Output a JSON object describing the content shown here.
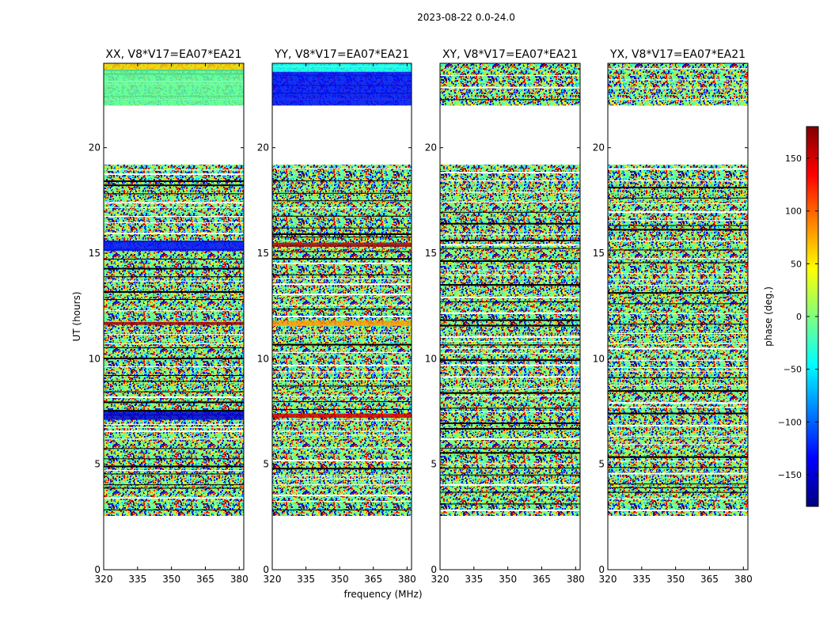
{
  "figure": {
    "title": "2023-08-22 0.0-24.0",
    "xlabel": "frequency (MHz)",
    "ylabel": "UT (hours)"
  },
  "colorbar": {
    "label": "phase (deg.)",
    "range": [
      -180,
      180
    ],
    "ticks": [
      -150,
      -100,
      -50,
      0,
      50,
      100,
      150
    ],
    "tick_labels": [
      "−150",
      "−100",
      "−50",
      "0",
      "50",
      "100",
      "150"
    ],
    "colormap": "jet",
    "colors": [
      "#00007f",
      "#0000ff",
      "#007fff",
      "#00ffff",
      "#7fff7f",
      "#ffff00",
      "#ff7f00",
      "#ff0000",
      "#7f0000"
    ]
  },
  "chart_data": [
    {
      "type": "heatmap",
      "title": "XX, V8*V17=EA07*EA21",
      "x_range": [
        320,
        382
      ],
      "y_range": [
        0,
        24
      ],
      "x_ticks": [
        320,
        335,
        350,
        365,
        380
      ],
      "y_ticks": [
        0,
        5,
        10,
        15,
        20
      ],
      "data_time_ranges_hours": [
        [
          2.55,
          19.2
        ],
        [
          22.0,
          24.0
        ]
      ],
      "colored_bands": [
        {
          "t0": 11.6,
          "t1": 11.75,
          "phase": 170
        },
        {
          "t0": 7.1,
          "t1": 7.5,
          "phase": -150
        },
        {
          "t0": 15.1,
          "t1": 15.6,
          "phase": -130
        },
        {
          "t0": 23.7,
          "t1": 24.0,
          "phase": 60
        },
        {
          "t0": 22.0,
          "t1": 23.7,
          "phase": -10
        }
      ]
    },
    {
      "type": "heatmap",
      "title": "YY, V8*V17=EA07*EA21",
      "x_range": [
        320,
        382
      ],
      "y_range": [
        0,
        24
      ],
      "x_ticks": [
        320,
        335,
        350,
        365,
        380
      ],
      "y_ticks": [
        0,
        5,
        10,
        15,
        20
      ],
      "data_time_ranges_hours": [
        [
          2.55,
          19.2
        ],
        [
          22.0,
          24.0
        ]
      ],
      "colored_bands": [
        {
          "t0": 7.2,
          "t1": 7.4,
          "phase": 150
        },
        {
          "t0": 11.55,
          "t1": 11.8,
          "phase": 80
        },
        {
          "t0": 15.3,
          "t1": 15.5,
          "phase": 170
        },
        {
          "t0": 23.6,
          "t1": 24.0,
          "phase": -40
        },
        {
          "t0": 22.0,
          "t1": 23.6,
          "phase": -130
        }
      ]
    },
    {
      "type": "heatmap",
      "title": "XY, V8*V17=EA07*EA21",
      "x_range": [
        320,
        382
      ],
      "y_range": [
        0,
        24
      ],
      "x_ticks": [
        320,
        335,
        350,
        365,
        380
      ],
      "y_ticks": [
        0,
        5,
        10,
        15,
        20
      ],
      "data_time_ranges_hours": [
        [
          2.55,
          19.2
        ],
        [
          22.0,
          24.0
        ]
      ],
      "colored_bands": []
    },
    {
      "type": "heatmap",
      "title": "YX, V8*V17=EA07*EA21",
      "x_range": [
        320,
        382
      ],
      "y_range": [
        0,
        24
      ],
      "x_ticks": [
        320,
        335,
        350,
        365,
        380
      ],
      "y_ticks": [
        0,
        5,
        10,
        15,
        20
      ],
      "data_time_ranges_hours": [
        [
          2.55,
          19.2
        ],
        [
          22.0,
          24.0
        ]
      ],
      "colored_bands": []
    }
  ]
}
